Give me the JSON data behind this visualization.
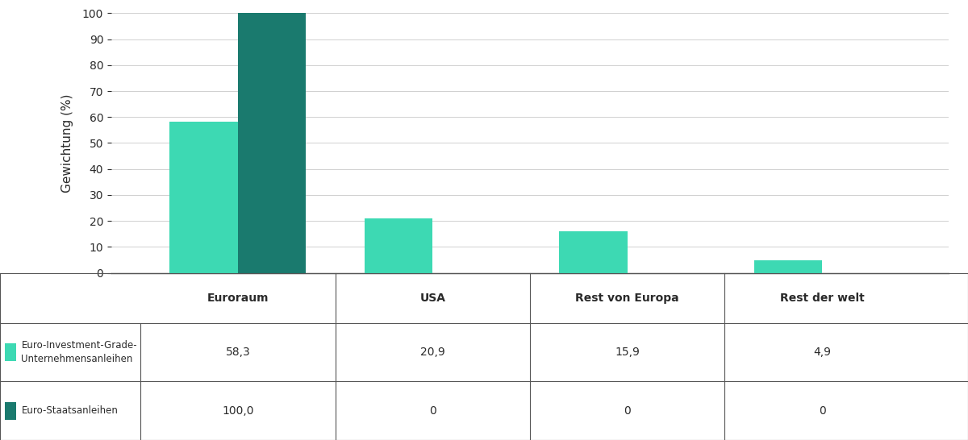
{
  "categories": [
    "Euroraum",
    "USA",
    "Rest von Europa",
    "Rest der welt"
  ],
  "series1_label": "Euro-Investment-Grade-\nUnternehmensanleihen",
  "series1_values": [
    58.3,
    20.9,
    15.9,
    4.9
  ],
  "series1_color": "#3dd9b3",
  "series2_label": "Euro-Staatsanleihen",
  "series2_values": [
    100.0,
    0,
    0,
    0
  ],
  "series2_color": "#1a7a6e",
  "ylabel": "Gewichtung (%)",
  "ylim": [
    0,
    100
  ],
  "yticks": [
    0,
    10,
    20,
    30,
    40,
    50,
    60,
    70,
    80,
    90,
    100
  ],
  "table_row1_label": "Euro-Investment-Grade-\nUnternehmensanleihen",
  "table_row2_label": "Euro-Staatsanleihen",
  "table_row1_values": [
    "58,3",
    "20,9",
    "15,9",
    "4,9"
  ],
  "table_row2_values": [
    "100,0",
    "0",
    "0",
    "0"
  ],
  "bar_width": 0.35,
  "background_color": "#ffffff",
  "font_color": "#2a2a2a",
  "grid_color": "#d0d0d0",
  "table_line_color": "#555555",
  "xlim": [
    -0.65,
    3.65
  ]
}
